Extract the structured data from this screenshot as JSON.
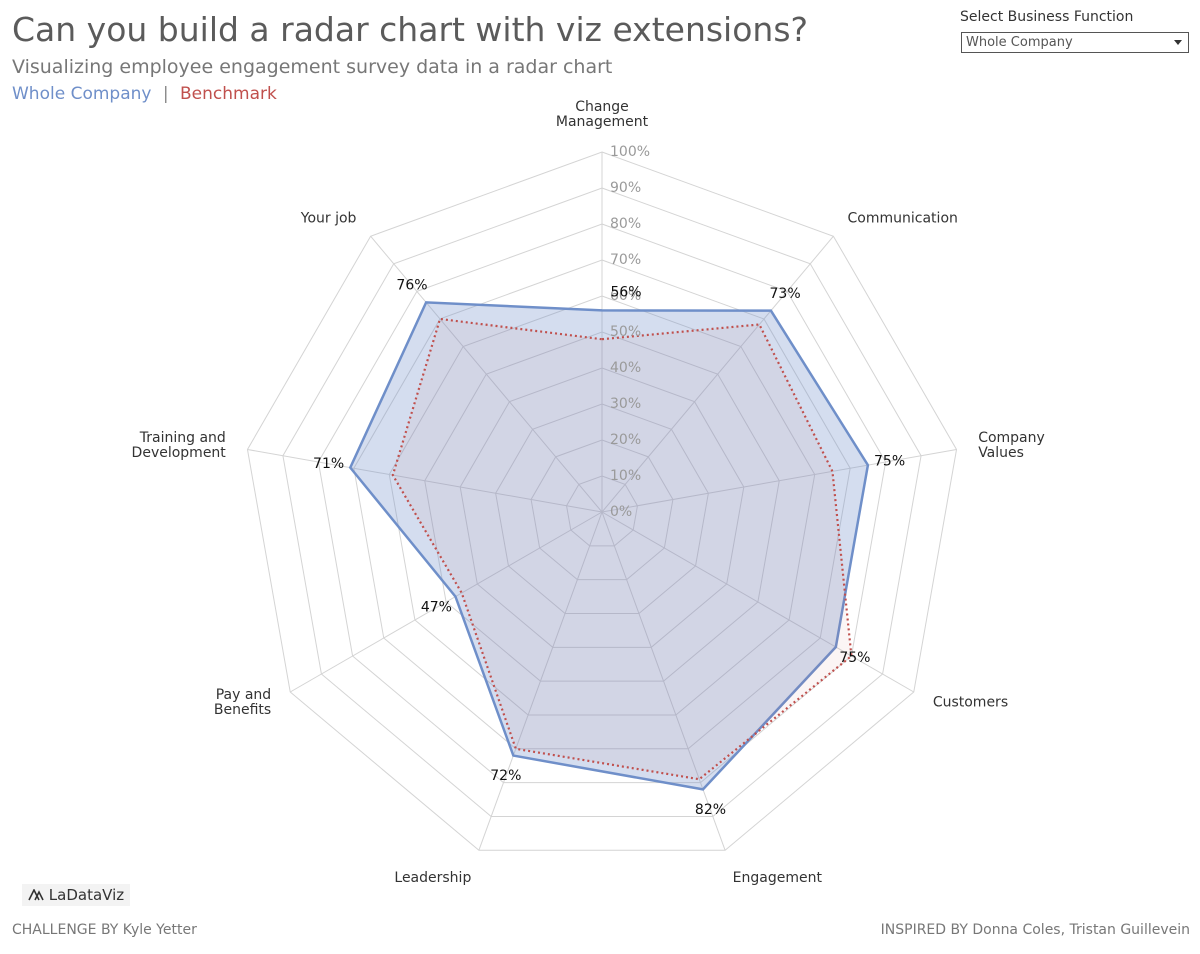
{
  "chart_data": {
    "type": "radar",
    "title": "Can you build a radar chart with viz extensions?",
    "subtitle": "Visualizing employee engagement survey data in a radar chart",
    "legend_separator": "|",
    "categories": [
      "Change Management",
      "Communication",
      "Company Values",
      "Customers",
      "Engagement",
      "Leadership",
      "Pay and Benefits",
      "Training and Development",
      "Your job"
    ],
    "series": [
      {
        "name": "Whole Company",
        "color": "#6f8fc9",
        "values": [
          56,
          73,
          75,
          75,
          82,
          72,
          47,
          71,
          76
        ],
        "value_labels": [
          "56%",
          "73%",
          "75%",
          "75%",
          "82%",
          "72%",
          "47%",
          "71%",
          "76%"
        ]
      },
      {
        "name": "Benchmark",
        "color": "#c0504d",
        "values": [
          48,
          68,
          65,
          80,
          79,
          70,
          45,
          59,
          70
        ]
      }
    ],
    "ylim": [
      0,
      100
    ],
    "yticks": [
      {
        "value": 0,
        "label": "0%"
      },
      {
        "value": 10,
        "label": "10%"
      },
      {
        "value": 20,
        "label": "20%"
      },
      {
        "value": 30,
        "label": "30%"
      },
      {
        "value": 40,
        "label": "40%"
      },
      {
        "value": 50,
        "label": "50%"
      },
      {
        "value": 60,
        "label": "60%"
      },
      {
        "value": 70,
        "label": "70%"
      },
      {
        "value": 80,
        "label": "80%"
      },
      {
        "value": 90,
        "label": "90%"
      },
      {
        "value": 100,
        "label": "100%"
      }
    ],
    "grid": true
  },
  "filter": {
    "label": "Select Business Function",
    "value": "Whole Company"
  },
  "footer": {
    "logo": "LaDataViz",
    "credit_left": "CHALLENGE BY Kyle Yetter",
    "credit_right": "INSPIRED BY Donna Coles, Tristan Guillevein"
  }
}
